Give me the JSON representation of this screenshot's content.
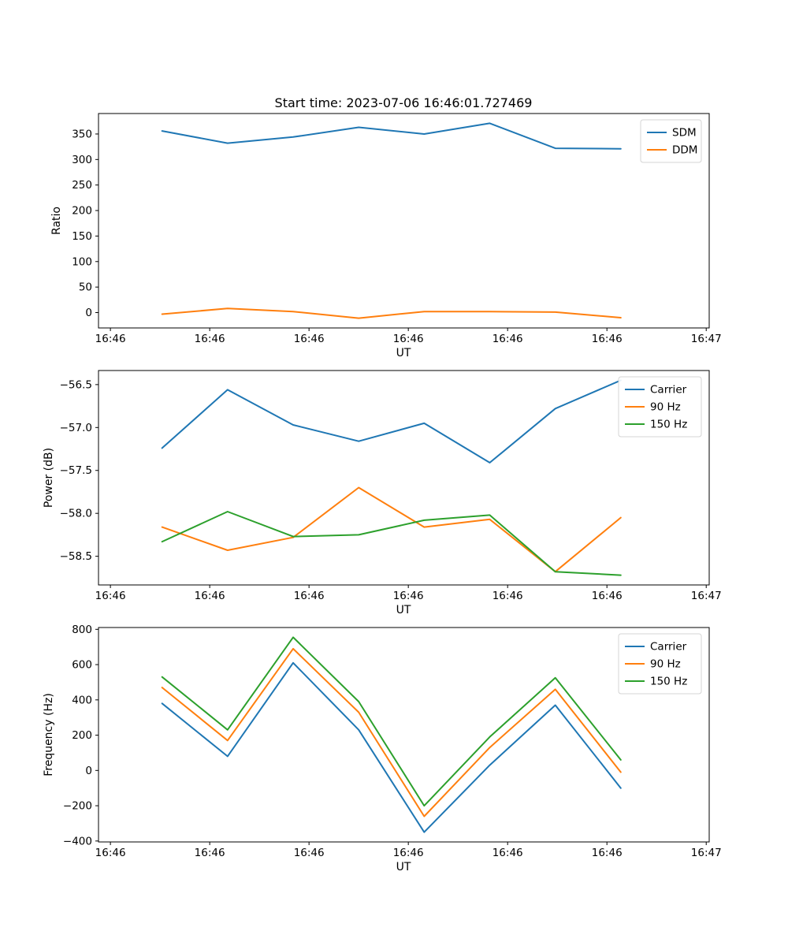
{
  "figure": {
    "title": "Start time: 2023-07-06 16:46:01.727469",
    "background": "#ffffff",
    "text_color": "#000000"
  },
  "colors": {
    "blue": "#1f77b4",
    "orange": "#ff7f0e",
    "green": "#2ca02c",
    "legend_border": "#d4d4d4",
    "axes_frame": "#000000"
  },
  "chart_data": [
    {
      "type": "line",
      "title": "",
      "xlabel": "UT",
      "ylabel": "Ratio",
      "grid": false,
      "x": [
        5.2,
        11.8,
        18.4,
        25.0,
        31.6,
        38.2,
        44.8,
        51.4
      ],
      "series": [
        {
          "name": "SDM",
          "color": "#1f77b4",
          "values": [
            356,
            332,
            344,
            363,
            350,
            371,
            322,
            321
          ]
        },
        {
          "name": "DDM",
          "color": "#ff7f0e",
          "values": [
            -3,
            8,
            2,
            -11,
            2,
            2,
            1,
            -10
          ]
        }
      ],
      "xlim": [
        -1.2,
        60.3
      ],
      "ylim": [
        -30.1,
        390.1
      ],
      "xticks": [
        0,
        10,
        20,
        30,
        40,
        50,
        60
      ],
      "xtick_labels": [
        "16:46",
        "16:46",
        "16:46",
        "16:46",
        "16:46",
        "16:46",
        "16:47"
      ],
      "yticks": [
        0,
        50,
        100,
        150,
        200,
        250,
        300,
        350
      ],
      "ytick_labels": [
        "0",
        "50",
        "100",
        "150",
        "200",
        "250",
        "300",
        "350"
      ],
      "legend": {
        "position": "upper right",
        "entries": [
          "SDM",
          "DDM"
        ]
      }
    },
    {
      "type": "line",
      "title": "",
      "xlabel": "UT",
      "ylabel": "Power (dB)",
      "grid": false,
      "x": [
        5.2,
        11.8,
        18.4,
        25.0,
        31.6,
        38.2,
        44.8,
        51.4
      ],
      "series": [
        {
          "name": "Carrier",
          "color": "#1f77b4",
          "values": [
            -57.24,
            -56.56,
            -56.97,
            -57.16,
            -56.95,
            -57.41,
            -56.78,
            -56.45
          ]
        },
        {
          "name": "90 Hz",
          "color": "#ff7f0e",
          "values": [
            -58.16,
            -58.43,
            -58.28,
            -57.7,
            -58.16,
            -58.07,
            -58.68,
            -58.05
          ]
        },
        {
          "name": "150 Hz",
          "color": "#2ca02c",
          "values": [
            -58.33,
            -57.98,
            -58.27,
            -58.25,
            -58.08,
            -58.02,
            -58.68,
            -58.72
          ]
        }
      ],
      "xlim": [
        -1.2,
        60.3
      ],
      "ylim": [
        -58.834,
        -56.336
      ],
      "xticks": [
        0,
        10,
        20,
        30,
        40,
        50,
        60
      ],
      "xtick_labels": [
        "16:46",
        "16:46",
        "16:46",
        "16:46",
        "16:46",
        "16:46",
        "16:47"
      ],
      "yticks": [
        -56.5,
        -57.0,
        -57.5,
        -58.0,
        -58.5
      ],
      "ytick_labels": [
        "−56.5",
        "−57.0",
        "−57.5",
        "−58.0",
        "−58.5"
      ],
      "legend": {
        "position": "upper right",
        "entries": [
          "Carrier",
          "90 Hz",
          "150 Hz"
        ]
      }
    },
    {
      "type": "line",
      "title": "",
      "xlabel": "UT",
      "ylabel": "Frequency (Hz)",
      "grid": false,
      "x": [
        5.2,
        11.8,
        18.4,
        25.0,
        31.6,
        38.2,
        44.8,
        51.4
      ],
      "series": [
        {
          "name": "Carrier",
          "color": "#1f77b4",
          "values": [
            380,
            80,
            610,
            230,
            -350,
            30,
            370,
            -100
          ]
        },
        {
          "name": "90 Hz",
          "color": "#ff7f0e",
          "values": [
            470,
            170,
            690,
            330,
            -260,
            130,
            460,
            -10
          ]
        },
        {
          "name": "150 Hz",
          "color": "#2ca02c",
          "values": [
            530,
            230,
            755,
            390,
            -200,
            190,
            525,
            60
          ]
        }
      ],
      "xlim": [
        -1.2,
        60.3
      ],
      "ylim": [
        -405.3,
        810.3
      ],
      "xticks": [
        0,
        10,
        20,
        30,
        40,
        50,
        60
      ],
      "xtick_labels": [
        "16:46",
        "16:46",
        "16:46",
        "16:46",
        "16:46",
        "16:46",
        "16:47"
      ],
      "yticks": [
        800,
        600,
        400,
        200,
        0,
        -200,
        -400
      ],
      "ytick_labels": [
        "800",
        "600",
        "400",
        "200",
        "0",
        "−200",
        "−400"
      ],
      "legend": {
        "position": "upper right",
        "entries": [
          "Carrier",
          "90 Hz",
          "150 Hz"
        ]
      }
    }
  ]
}
